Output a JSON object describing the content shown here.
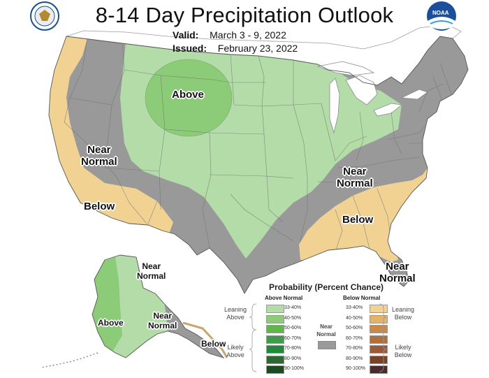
{
  "title": "8-14 Day Precipitation Outlook",
  "valid_label": "Valid:",
  "valid_value": "March 3 - 9, 2022",
  "issued_label": "Issued:",
  "issued_value": "February 23, 2022",
  "logos": {
    "left": "doc-seal-icon",
    "right": "noaa-logo-icon",
    "noaa_text": "NOAA"
  },
  "colors": {
    "near_normal": "#999999",
    "above_33_40": "#b3dca8",
    "above_40_50": "#8ccb77",
    "below_33_40": "#f1d293",
    "state_line": "#6e6e6e",
    "water": "#ffffff"
  },
  "map_labels": {
    "above_north": "Above",
    "near_normal_west_1": "Near",
    "near_normal_west_2": "Normal",
    "below_sw": "Below",
    "near_normal_east_1": "Near",
    "near_normal_east_2": "Normal",
    "below_se": "Below",
    "near_normal_fl_1": "Near",
    "near_normal_fl_2": "Normal",
    "ak_near_1": "Near",
    "ak_near_2": "Normal",
    "ak_near_s_1": "Near",
    "ak_near_s_2": "Normal",
    "ak_above": "Above",
    "ak_below": "Below"
  },
  "legend": {
    "title": "Probability (Percent Chance)",
    "above_head": "Above Normal",
    "below_head": "Below Normal",
    "near_normal_1": "Near",
    "near_normal_2": "Normal",
    "leaning_above_1": "Leaning",
    "leaning_above_2": "Above",
    "likely_above_1": "Likely",
    "likely_above_2": "Above",
    "leaning_below_1": "Leaning",
    "leaning_below_2": "Below",
    "likely_below_1": "Likely",
    "likely_below_2": "Below",
    "categories": [
      "33-40%",
      "40-50%",
      "50-60%",
      "60-70%",
      "70-80%",
      "80-90%",
      "90-100%"
    ],
    "above_colors": [
      "#b3dca8",
      "#8ccb77",
      "#5fb64a",
      "#3f9a4a",
      "#1f8a3a",
      "#2a6a30",
      "#1e4a22"
    ],
    "below_colors": [
      "#f1d293",
      "#e2b368",
      "#c88a49",
      "#b0703e",
      "#9a5a3a",
      "#7a4222",
      "#4a2a2a"
    ]
  }
}
